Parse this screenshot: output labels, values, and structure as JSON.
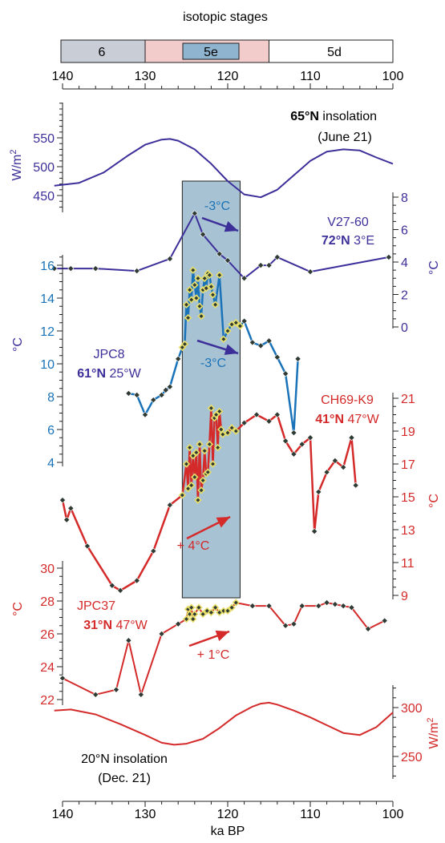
{
  "colors": {
    "insolation65": "#3d2f9a",
    "v2760": "#3d2f9a",
    "jpc8": "#1a73b8",
    "ch69": "#d42a2a",
    "jpc37": "#d42a2a",
    "insolation20": "#d42a2a",
    "band": "#a7c2d3",
    "stage6": "#c9cdd6",
    "stage5e": "#f2cbcb",
    "stage5e_inner": "#8fb4cf",
    "marker_dark": "#2f3a33",
    "marker_light": "#e7df6a"
  },
  "labels": {
    "isotopic_stages": "isotopic stages",
    "stage6": "6",
    "stage5e": "5e",
    "stage5d": "5d",
    "xlabel": "ka BP",
    "ins65_lat": "65°N",
    "ins65_word": " insolation",
    "ins65_date": "(June 21)",
    "ins65_unit_main": "W/m",
    "ins65_unit_sup": "2",
    "v2760_name": "V27-60",
    "v2760_lat": "72°N",
    "v2760_lon": " 3°E",
    "v2760_unit": "°C",
    "v2760_change": "-3°C",
    "jpc8_name": "JPC8",
    "jpc8_lat": "61°N",
    "jpc8_lon": " 25°W",
    "jpc8_unit": "°C",
    "jpc8_change": "-3°C",
    "ch69_name": "CH69-K9",
    "ch69_lat": "41°N",
    "ch69_lon": " 47°W",
    "ch69_unit": "°C",
    "ch69_change": "+ 4°C",
    "jpc37_name": "JPC37",
    "jpc37_lat": "31°N",
    "jpc37_lon": " 47°W",
    "jpc37_unit": "°C",
    "jpc37_change": "+ 1°C",
    "ins20_line1": "20°N insolation",
    "ins20_line2": "(Dec. 21)",
    "ins20_unit_main": "W/m",
    "ins20_unit_sup": "2"
  },
  "chart_data": {
    "type": "line",
    "xlabel": "ka BP",
    "xlim": [
      140,
      100
    ],
    "xticks": [
      140,
      130,
      120,
      110,
      100
    ],
    "shaded_interval": [
      125.5,
      118.5
    ],
    "isotopic_stages": [
      {
        "name": "6",
        "from": 141,
        "to": 130
      },
      {
        "name": "5e",
        "from": 130,
        "to": 115
      },
      {
        "name": "5d",
        "from": 115,
        "to": 100
      }
    ],
    "series": [
      {
        "name": "65°N insolation (June 21)",
        "unit": "W/m2",
        "axis_ticks": [
          450,
          500,
          550
        ],
        "x": [
          141,
          138,
          135,
          132,
          130,
          128,
          127,
          126,
          124,
          122,
          120,
          118,
          116,
          114,
          112,
          110,
          108,
          106,
          104,
          102,
          100
        ],
        "y": [
          467,
          472,
          490,
          520,
          538,
          547,
          548,
          545,
          530,
          505,
          475,
          452,
          447,
          460,
          485,
          510,
          526,
          530,
          528,
          516,
          505
        ]
      },
      {
        "name": "V27-60 72°N 3°E",
        "unit": "°C",
        "axis_ticks": [
          0,
          2,
          4,
          6,
          8
        ],
        "x": [
          141,
          139,
          136,
          131,
          127,
          124,
          123,
          121,
          120,
          118,
          116,
          115,
          114,
          110,
          100.5
        ],
        "y": [
          3.6,
          3.6,
          3.6,
          3.45,
          4.2,
          7.0,
          5.7,
          4.5,
          4.1,
          3.0,
          3.8,
          3.8,
          4.3,
          3.4,
          4.3
        ]
      },
      {
        "name": "JPC8 61°N 25°W",
        "unit": "°C",
        "axis_ticks": [
          4,
          6,
          8,
          10,
          12,
          14,
          16
        ],
        "x": [
          132,
          131,
          130,
          129,
          128,
          127.5,
          127,
          126,
          125.5,
          125.2,
          125,
          124.8,
          124.6,
          124.4,
          124.2,
          124,
          123.8,
          123.6,
          123.4,
          123.2,
          123,
          122.8,
          122.6,
          122.4,
          122.2,
          122,
          121.8,
          121.5,
          121,
          120.5,
          120,
          119.5,
          119,
          118.5,
          118,
          117,
          116,
          115,
          114,
          113,
          112,
          111.5
        ],
        "y": [
          8.2,
          8.1,
          6.9,
          7.8,
          8.1,
          8.4,
          8.6,
          10.3,
          11,
          11.2,
          13.6,
          12.8,
          14.5,
          13.9,
          15.7,
          14.8,
          14,
          15.2,
          13.5,
          12.9,
          14.5,
          15.2,
          14.6,
          15.5,
          15.4,
          14.7,
          14.2,
          13.6,
          15.4,
          11.5,
          12,
          12.4,
          12.5,
          12.3,
          12.6,
          11.3,
          11.1,
          11.4,
          10.4,
          9.4,
          5.8,
          10.3
        ]
      },
      {
        "name": "CH69-K9 41°N 47°W",
        "unit": "°C",
        "axis_ticks": [
          9,
          11,
          13,
          15,
          17,
          19,
          21
        ],
        "x": [
          140,
          139.5,
          139,
          137,
          134,
          133,
          131,
          129,
          127,
          125.5,
          125,
          124.8,
          124.6,
          124.4,
          124.2,
          124,
          123.8,
          123.6,
          123.4,
          123.2,
          123,
          122.8,
          122.6,
          122.4,
          122.2,
          122,
          121.8,
          121.6,
          121.4,
          121.2,
          121,
          120.8,
          120.6,
          120,
          119.5,
          119,
          118,
          116.5,
          115,
          114,
          113,
          112,
          111,
          110,
          109.5,
          109,
          108,
          107,
          106,
          105,
          104.5
        ],
        "y": [
          14.8,
          13.6,
          14.3,
          12.0,
          9.6,
          9.3,
          9.9,
          11.7,
          14.5,
          15.1,
          17,
          15.5,
          18,
          15.7,
          17.5,
          16.2,
          17.7,
          14.8,
          18.2,
          15.4,
          16,
          17.8,
          16.4,
          16.5,
          18.2,
          20.4,
          17,
          19.8,
          20,
          18,
          20.2,
          19.1,
          18.8,
          18.9,
          19.2,
          19,
          19.5,
          20.0,
          19.6,
          20.0,
          18.4,
          17.6,
          18.2,
          18.6,
          12.9,
          15.3,
          16.5,
          17.2,
          16.8,
          18.6,
          15.7
        ]
      },
      {
        "name": "JPC37 31°N 47°W",
        "unit": "°C",
        "axis_ticks": [
          22,
          24,
          26,
          28,
          30
        ],
        "x": [
          140,
          136,
          133.5,
          132,
          130.5,
          128,
          126,
          125,
          124.8,
          124.6,
          124.4,
          124.2,
          124,
          123.5,
          123,
          122.5,
          122,
          121.5,
          121,
          120.5,
          120,
          119.5,
          119,
          117,
          115,
          113,
          112,
          111,
          109,
          108,
          107,
          106,
          105,
          103,
          101
        ],
        "y": [
          23.3,
          22.3,
          22.6,
          25.6,
          22.3,
          26,
          26.6,
          26.9,
          27.5,
          27.2,
          27.6,
          26.9,
          27.2,
          27.6,
          27.2,
          27.4,
          27.3,
          27.6,
          27.3,
          27.4,
          27.4,
          27.6,
          27.9,
          27.7,
          27.7,
          26.5,
          26.6,
          27.7,
          27.7,
          27.9,
          27.8,
          27.7,
          27.6,
          26.3,
          26.8
        ]
      },
      {
        "name": "20°N insolation (Dec. 21)",
        "unit": "W/m2",
        "axis_ticks": [
          250,
          300
        ],
        "x": [
          141,
          139,
          136,
          133,
          130,
          128,
          126.5,
          125,
          123,
          121,
          119,
          117,
          116,
          115,
          114,
          112,
          110,
          108,
          106,
          104,
          102,
          100
        ],
        "y": [
          297,
          298,
          293,
          283,
          272,
          264,
          262,
          263,
          268,
          279,
          292,
          301,
          304,
          305,
          303,
          297,
          290,
          282,
          274,
          272,
          280,
          295
        ]
      }
    ]
  }
}
